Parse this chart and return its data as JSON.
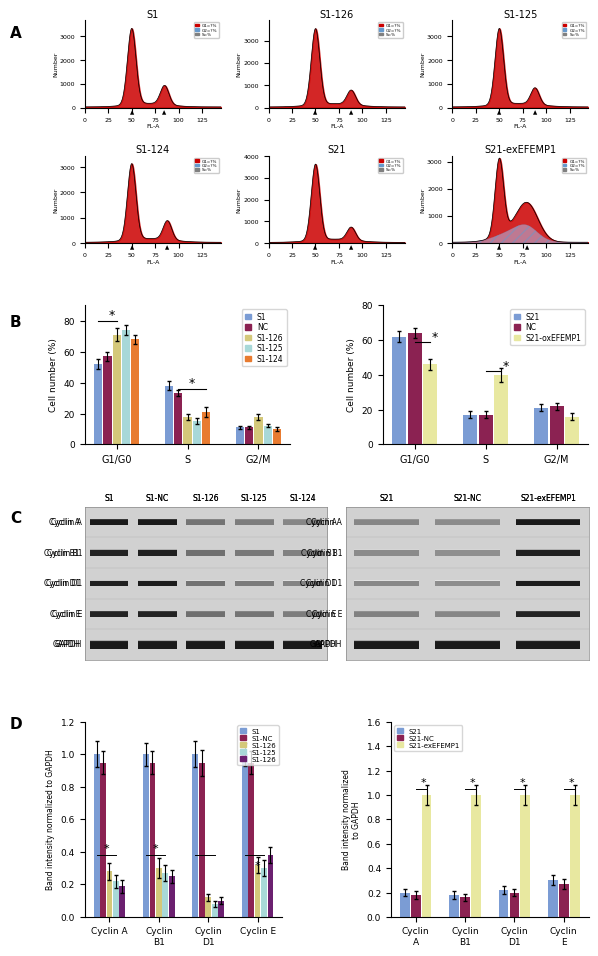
{
  "panel_A_title": "A",
  "panel_B_title": "B",
  "panel_C_title": "C",
  "panel_D_title": "D",
  "flow_titles": [
    "S1",
    "S1-126",
    "S1-125",
    "S1-124",
    "S21",
    "S21-exEFEMP1"
  ],
  "bar_B_left": {
    "groups": [
      "G1/G0",
      "S",
      "G2/M"
    ],
    "series": {
      "S1": [
        52,
        38,
        11
      ],
      "NC": [
        57,
        33,
        11
      ],
      "S1-126": [
        71,
        18,
        18
      ],
      "S1-125": [
        74,
        15,
        12
      ],
      "S1-124": [
        68,
        21,
        10
      ]
    },
    "errors": {
      "S1": [
        3,
        3,
        1
      ],
      "NC": [
        3,
        2,
        1
      ],
      "S1-126": [
        4,
        2,
        2
      ],
      "S1-125": [
        3,
        2,
        1
      ],
      "S1-124": [
        3,
        3,
        1
      ]
    },
    "colors": {
      "S1": "#7b9cd4",
      "NC": "#8b2252",
      "S1-126": "#d4c87a",
      "S1-125": "#a8d8d8",
      "S1-124": "#e87b30"
    },
    "ylabel": "Cell number (%)",
    "ylim": [
      0,
      90
    ]
  },
  "bar_B_right": {
    "groups": [
      "G1/G0",
      "S",
      "G2/M"
    ],
    "series": {
      "S21": [
        62,
        17,
        21
      ],
      "NC": [
        64,
        17,
        22
      ],
      "S21-oxEFEMP1": [
        46,
        40,
        16
      ]
    },
    "errors": {
      "S21": [
        3,
        2,
        2
      ],
      "NC": [
        3,
        2,
        2
      ],
      "S21-oxEFEMP1": [
        3,
        4,
        2
      ]
    },
    "colors": {
      "S21": "#7b9cd4",
      "NC": "#8b2252",
      "S21-oxEFEMP1": "#e8e8a0"
    },
    "ylabel": "Cell number (%)",
    "ylim": [
      0,
      80
    ]
  },
  "western_left_labels": [
    "Cyclin A",
    "Cyclin B1",
    "Cyclin D1",
    "Cyclin E",
    "GAPDH"
  ],
  "western_left_cols": [
    "S1",
    "S1-NC",
    "S1-126",
    "S1-125",
    "S1-124"
  ],
  "western_right_labels": [
    "Cyclin A",
    "Cyclin B1",
    "Cyclin D1",
    "Cyclin E",
    "GAPDH"
  ],
  "western_right_cols": [
    "S21",
    "S21-NC",
    "S21-exEFEMP1"
  ],
  "bar_D_left": {
    "groups": [
      "Cyclin A",
      "Cyclin\nB1",
      "Cyclin\nD1",
      "Cyclin E"
    ],
    "series": {
      "S1": [
        1.0,
        1.0,
        1.0,
        1.0
      ],
      "S1-NC": [
        0.95,
        0.95,
        0.95,
        0.95
      ],
      "S1-126": [
        0.28,
        0.3,
        0.12,
        0.32
      ],
      "S1-125": [
        0.22,
        0.27,
        0.08,
        0.3
      ],
      "S1-126b": [
        0.19,
        0.25,
        0.1,
        0.38
      ]
    },
    "errors": {
      "S1": [
        0.08,
        0.07,
        0.08,
        0.07
      ],
      "S1-NC": [
        0.07,
        0.07,
        0.08,
        0.07
      ],
      "S1-126": [
        0.05,
        0.06,
        0.02,
        0.05
      ],
      "S1-125": [
        0.04,
        0.05,
        0.02,
        0.05
      ],
      "S1-126b": [
        0.04,
        0.04,
        0.02,
        0.05
      ]
    },
    "colors": {
      "S1": "#7b9cd4",
      "S1-NC": "#8b2252",
      "S1-126": "#d4c87a",
      "S1-125": "#a8d8d8",
      "S1-126b": "#6b2070"
    },
    "legend_labels": [
      "S1",
      "S1-NC",
      "S1-126",
      "S1-125",
      "S1-126"
    ],
    "ylabel": "Band intensity normalized to GAPDH",
    "ylim": [
      0,
      1.2
    ]
  },
  "bar_D_right": {
    "groups": [
      "Cyclin\nA",
      "Cyclin\nB1",
      "Cyclin\nD1",
      "Cyclin\nE"
    ],
    "series": {
      "S21": [
        0.2,
        0.18,
        0.22,
        0.3
      ],
      "S21-NC": [
        0.18,
        0.16,
        0.2,
        0.27
      ],
      "S21-exEFEMP1": [
        1.0,
        1.0,
        1.0,
        1.0
      ]
    },
    "errors": {
      "S21": [
        0.03,
        0.03,
        0.03,
        0.04
      ],
      "S21-NC": [
        0.03,
        0.03,
        0.03,
        0.04
      ],
      "S21-exEFEMP1": [
        0.08,
        0.08,
        0.08,
        0.08
      ]
    },
    "colors": {
      "S21": "#7b9cd4",
      "S21-NC": "#8b2252",
      "S21-exEFEMP1": "#e8e8a0"
    },
    "ylabel": "Band intensity normalized\nto GAPDH",
    "ylim": [
      0,
      1.6
    ]
  },
  "bg_color": "#f0f4f8"
}
